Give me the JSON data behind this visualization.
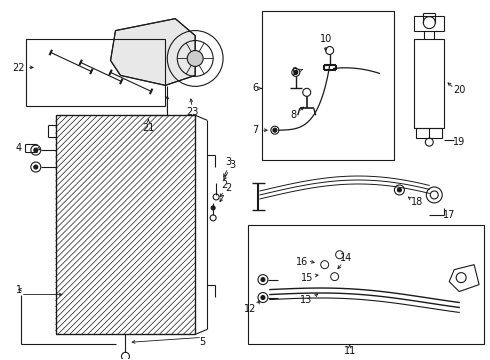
{
  "bg_color": "#ffffff",
  "fig_width": 4.9,
  "fig_height": 3.6,
  "dpi": 100,
  "line_color": "#1a1a1a",
  "label_fontsize": 7.0
}
